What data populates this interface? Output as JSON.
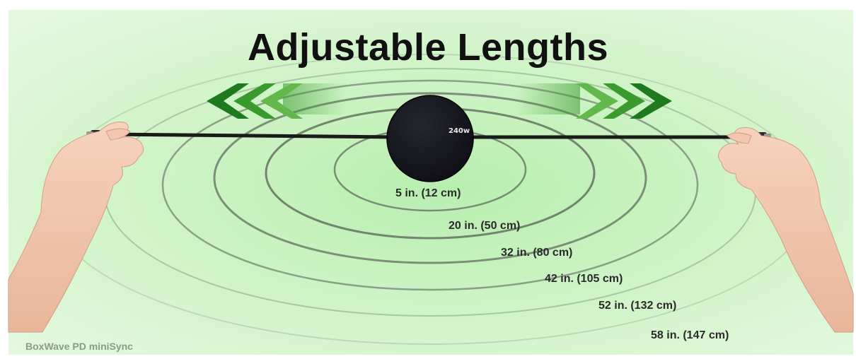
{
  "title": "Adjustable Lengths",
  "device": {
    "label": "240w"
  },
  "lengths": [
    "5 in. (12 cm)",
    "20 in. (50 cm)",
    "32 in. (80 cm)",
    "42 in. (105 cm)",
    "52 in. (132 cm)",
    "58 in. (147 cm)"
  ],
  "brand": "BoxWave PD miniSync",
  "colors": {
    "background": "#c9f2c0",
    "arrow_dark": "#1f7a1f",
    "arrow_mid": "#3a9a2e",
    "arrow_light": "#62b84a",
    "ring": "#3c3c3c",
    "cable": "#1a1a1a",
    "puck": "#111118"
  },
  "icons": {
    "left_arrows": "chevron-left-icon",
    "right_arrows": "chevron-right-icon"
  }
}
